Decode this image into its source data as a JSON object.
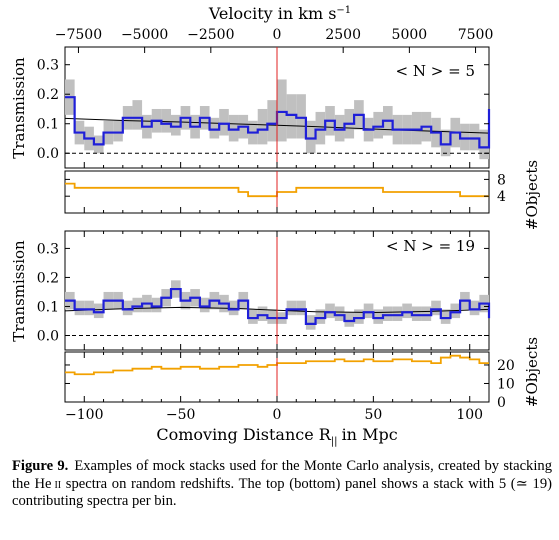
{
  "top_axis_label": "Velocity in km s",
  "top_axis_unit_exp": "−1",
  "top_axis_ticks": [
    "−7500",
    "−5000",
    "−2500",
    "0",
    "2500",
    "5000",
    "7500"
  ],
  "caption": {
    "label": "Figure 9.",
    "before_ion": "Examples of mock stacks used for the Monte Carlo analysis, created by stacking the He",
    "ion": "ii",
    "after_ion": "spectra on random redshifts. The top (bottom) panel shows a stack with 5 (≃ 19) contributing spectra per bin."
  },
  "colors": {
    "stack": "#1f1fd8",
    "model": "#000000",
    "error": "#c0c0c0",
    "objects": "#f2a100",
    "zero_line": "#e02020"
  },
  "chart_data": [
    {
      "type": "line",
      "panel": "top",
      "annotation": "< N > = 5",
      "ylabel": "Transmission",
      "xlabel": "",
      "xlim": [
        -110,
        110
      ],
      "ylim": [
        -0.05,
        0.36
      ],
      "yticks": [
        "0.0",
        "0.1",
        "0.2",
        "0.3"
      ],
      "vertical_line_x": 0,
      "dashed_hline_y": 0,
      "step_x": [
        -110,
        -105,
        -100,
        -95,
        -90,
        -85,
        -80,
        -75,
        -70,
        -65,
        -60,
        -55,
        -50,
        -45,
        -40,
        -35,
        -30,
        -25,
        -20,
        -15,
        -10,
        -5,
        0,
        5,
        10,
        15,
        20,
        25,
        30,
        35,
        40,
        45,
        50,
        55,
        60,
        65,
        70,
        75,
        80,
        85,
        90,
        95,
        100,
        105,
        110
      ],
      "series": [
        {
          "name": "",
          "kind": "stack",
          "values": [
            0.19,
            0.07,
            0.05,
            0.03,
            0.07,
            0.07,
            0.12,
            0.12,
            0.09,
            0.11,
            0.1,
            0.09,
            0.12,
            0.09,
            0.12,
            0.08,
            0.1,
            0.08,
            0.09,
            0.07,
            0.08,
            0.1,
            0.14,
            0.13,
            0.12,
            0.05,
            0.08,
            0.11,
            0.08,
            0.1,
            0.13,
            0.08,
            0.09,
            0.11,
            0.08,
            0.08,
            0.08,
            0.09,
            0.07,
            0.03,
            0.07,
            0.05,
            0.05,
            0.02,
            0.15
          ]
        },
        {
          "name": "",
          "kind": "error_band",
          "lower": [
            0.13,
            0.03,
            0.01,
            0.0,
            0.03,
            0.04,
            0.08,
            0.08,
            0.05,
            0.07,
            0.07,
            0.06,
            0.08,
            0.05,
            0.08,
            0.05,
            0.06,
            0.04,
            0.05,
            0.03,
            0.03,
            0.04,
            0.04,
            0.05,
            0.05,
            0.0,
            0.03,
            0.06,
            0.04,
            0.05,
            0.08,
            0.04,
            0.05,
            0.06,
            0.03,
            0.03,
            0.03,
            0.04,
            0.02,
            -0.01,
            0.02,
            0.01,
            0.01,
            -0.02,
            0.05
          ],
          "upper": [
            0.25,
            0.11,
            0.09,
            0.06,
            0.11,
            0.11,
            0.16,
            0.18,
            0.13,
            0.15,
            0.15,
            0.13,
            0.16,
            0.13,
            0.16,
            0.12,
            0.15,
            0.13,
            0.13,
            0.11,
            0.15,
            0.18,
            0.25,
            0.2,
            0.2,
            0.11,
            0.14,
            0.16,
            0.13,
            0.15,
            0.18,
            0.12,
            0.14,
            0.16,
            0.13,
            0.13,
            0.14,
            0.14,
            0.12,
            0.08,
            0.12,
            0.1,
            0.1,
            0.08,
            0.27
          ]
        },
        {
          "name": "",
          "kind": "model",
          "x": [
            -110,
            -80,
            -50,
            -20,
            0,
            20,
            50,
            80,
            110
          ],
          "values": [
            0.118,
            0.111,
            0.106,
            0.099,
            0.095,
            0.09,
            0.082,
            0.075,
            0.068
          ]
        }
      ]
    },
    {
      "type": "line",
      "panel": "top-objects",
      "ylabel": "#Objects",
      "xlabel": "",
      "xlim": [
        -110,
        110
      ],
      "ylim": [
        0,
        10
      ],
      "yticks": [
        "4",
        "8"
      ],
      "vertical_line_x": 0,
      "step_x": [
        -110,
        -105,
        -100,
        -95,
        -90,
        -85,
        -80,
        -75,
        -70,
        -65,
        -60,
        -55,
        -50,
        -45,
        -40,
        -35,
        -30,
        -25,
        -20,
        -15,
        -10,
        -5,
        0,
        5,
        10,
        15,
        20,
        25,
        30,
        35,
        40,
        45,
        50,
        55,
        60,
        65,
        70,
        75,
        80,
        85,
        90,
        95,
        100,
        105,
        110
      ],
      "series": [
        {
          "name": "",
          "kind": "objects",
          "values": [
            7,
            6,
            6,
            6,
            6,
            6,
            6,
            6,
            6,
            6,
            6,
            6,
            6,
            6,
            6,
            6,
            6,
            6,
            5,
            4,
            4,
            4,
            5,
            5,
            6,
            6,
            6,
            6,
            6,
            6,
            6,
            6,
            6,
            5,
            5,
            5,
            5,
            5,
            5,
            5,
            5,
            4,
            4,
            4
          ]
        }
      ]
    },
    {
      "type": "line",
      "panel": "bottom",
      "annotation": "< N > = 19",
      "ylabel": "Transmission",
      "xlabel": "",
      "xlim": [
        -110,
        110
      ],
      "ylim": [
        -0.05,
        0.36
      ],
      "yticks": [
        "0.0",
        "0.1",
        "0.2",
        "0.3"
      ],
      "vertical_line_x": 0,
      "dashed_hline_y": 0,
      "step_x": [
        -110,
        -105,
        -100,
        -95,
        -90,
        -85,
        -80,
        -75,
        -70,
        -65,
        -60,
        -55,
        -50,
        -45,
        -40,
        -35,
        -30,
        -25,
        -20,
        -15,
        -10,
        -5,
        0,
        5,
        10,
        15,
        20,
        25,
        30,
        35,
        40,
        45,
        50,
        55,
        60,
        65,
        70,
        75,
        80,
        85,
        90,
        95,
        100,
        105,
        110
      ],
      "series": [
        {
          "name": "",
          "kind": "stack",
          "values": [
            0.12,
            0.09,
            0.09,
            0.08,
            0.12,
            0.12,
            0.09,
            0.1,
            0.11,
            0.1,
            0.13,
            0.16,
            0.12,
            0.13,
            0.1,
            0.12,
            0.11,
            0.09,
            0.12,
            0.06,
            0.07,
            0.06,
            0.06,
            0.09,
            0.09,
            0.04,
            0.06,
            0.08,
            0.07,
            0.05,
            0.06,
            0.08,
            0.06,
            0.07,
            0.07,
            0.08,
            0.07,
            0.07,
            0.09,
            0.06,
            0.08,
            0.12,
            0.09,
            0.11,
            0.06
          ]
        },
        {
          "name": "",
          "kind": "error_band",
          "lower": [
            0.09,
            0.07,
            0.07,
            0.06,
            0.09,
            0.09,
            0.07,
            0.08,
            0.08,
            0.08,
            0.1,
            0.13,
            0.09,
            0.1,
            0.08,
            0.09,
            0.08,
            0.07,
            0.09,
            0.04,
            0.05,
            0.04,
            0.04,
            0.07,
            0.07,
            0.02,
            0.04,
            0.06,
            0.05,
            0.03,
            0.04,
            0.06,
            0.04,
            0.05,
            0.05,
            0.06,
            0.05,
            0.05,
            0.07,
            0.04,
            0.06,
            0.09,
            0.07,
            0.08,
            0.04
          ],
          "upper": [
            0.15,
            0.12,
            0.12,
            0.11,
            0.15,
            0.15,
            0.12,
            0.13,
            0.14,
            0.13,
            0.16,
            0.19,
            0.15,
            0.16,
            0.13,
            0.15,
            0.14,
            0.12,
            0.15,
            0.09,
            0.1,
            0.09,
            0.08,
            0.12,
            0.12,
            0.07,
            0.09,
            0.11,
            0.1,
            0.08,
            0.09,
            0.11,
            0.09,
            0.1,
            0.1,
            0.11,
            0.1,
            0.1,
            0.12,
            0.09,
            0.11,
            0.15,
            0.12,
            0.14,
            0.09
          ]
        },
        {
          "name": "",
          "kind": "model",
          "x": [
            -110,
            -80,
            -50,
            -20,
            0,
            20,
            50,
            80,
            110
          ],
          "values": [
            0.085,
            0.092,
            0.097,
            0.093,
            0.087,
            0.082,
            0.079,
            0.083,
            0.09
          ]
        }
      ]
    },
    {
      "type": "line",
      "panel": "bottom-objects",
      "ylabel": "#Objects",
      "xlabel": "Comoving Distance R",
      "xlabel_subscript": "||",
      "xlabel_unit": "in Mpc",
      "xlim": [
        -110,
        110
      ],
      "ylim": [
        0,
        27
      ],
      "yticks": [
        "0",
        "10",
        "20"
      ],
      "xticks": [
        "−100",
        "−50",
        "0",
        "50",
        "100"
      ],
      "vertical_line_x": 0,
      "step_x": [
        -110,
        -105,
        -100,
        -95,
        -90,
        -85,
        -80,
        -75,
        -70,
        -65,
        -60,
        -55,
        -50,
        -45,
        -40,
        -35,
        -30,
        -25,
        -20,
        -15,
        -10,
        -5,
        0,
        5,
        10,
        15,
        20,
        25,
        30,
        35,
        40,
        45,
        50,
        55,
        60,
        65,
        70,
        75,
        80,
        85,
        90,
        95,
        100,
        105,
        110
      ],
      "series": [
        {
          "name": "",
          "kind": "objects",
          "values": [
            16,
            15,
            15,
            16,
            16,
            17,
            17,
            18,
            18,
            19,
            18,
            18,
            19,
            19,
            18,
            18,
            19,
            19,
            20,
            20,
            19,
            20,
            21,
            21,
            21,
            22,
            22,
            22,
            23,
            22,
            22,
            23,
            22,
            22,
            23,
            23,
            22,
            22,
            21,
            24,
            25,
            24,
            23,
            21
          ]
        }
      ]
    }
  ]
}
